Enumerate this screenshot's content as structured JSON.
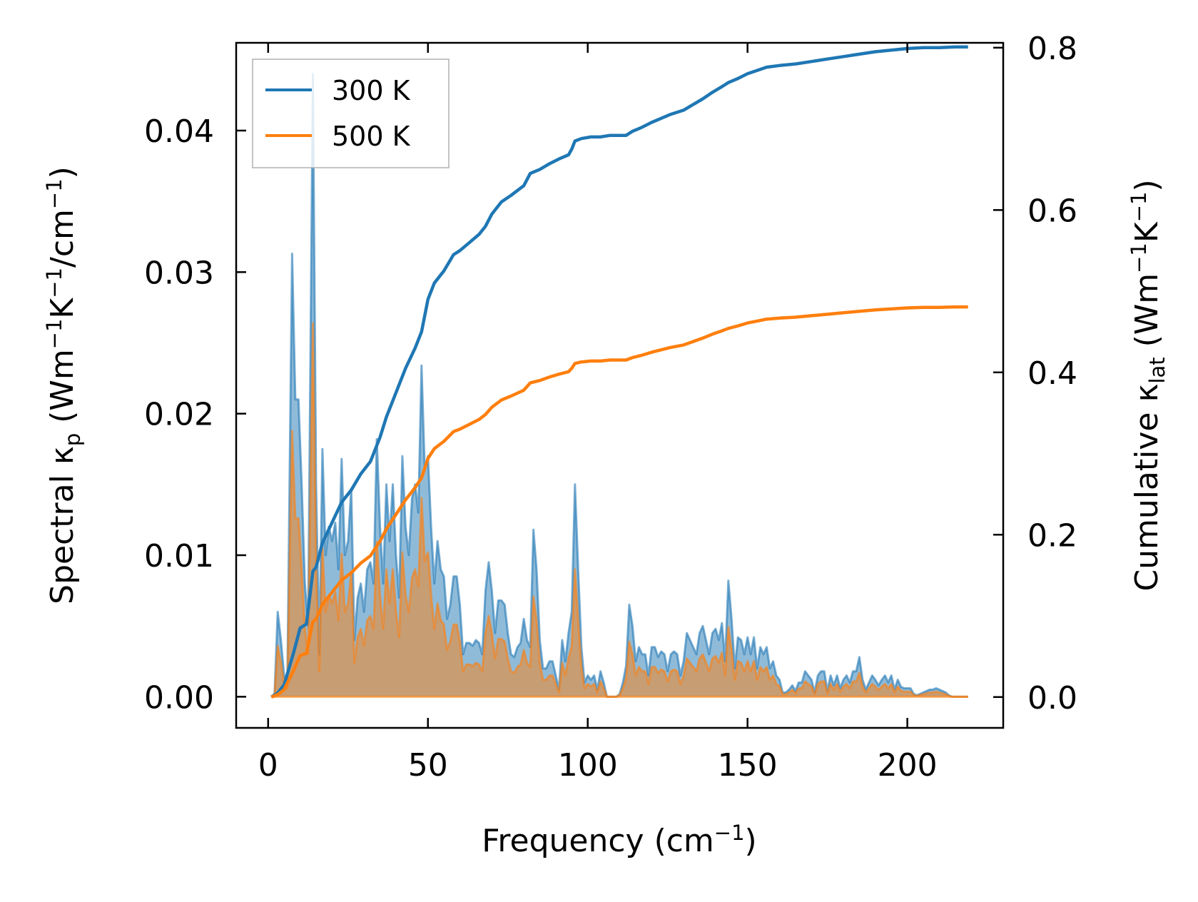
{
  "chart_data": {
    "type": "area+line",
    "xlabel": {
      "main": "Frequency (cm",
      "sup": "−1",
      "end": ")"
    },
    "ylabel_left": {
      "a": "Spectral κ",
      "sub": "p",
      "b": " (Wm",
      "sup1": "−1",
      "c": "K",
      "sup2": "−1",
      "d": "/cm",
      "sup3": "−1",
      "e": ")"
    },
    "ylabel_right": {
      "a": "Cumulative κ",
      "sub": "lat",
      "b": " (Wm",
      "sup1": "−1",
      "c": "K",
      "sup2": "−1",
      "d": ")"
    },
    "xlim": [
      -10,
      230
    ],
    "ylim_left": [
      -0.0022,
      0.0462
    ],
    "ylim_right": [
      -0.038,
      0.806
    ],
    "x_ticks": [
      {
        "value": 0,
        "label": "0"
      },
      {
        "value": 50,
        "label": "50"
      },
      {
        "value": 100,
        "label": "100"
      },
      {
        "value": 150,
        "label": "150"
      },
      {
        "value": 200,
        "label": "200"
      }
    ],
    "y_left_ticks": [
      {
        "value": 0.0,
        "label": "0.00"
      },
      {
        "value": 0.01,
        "label": "0.01"
      },
      {
        "value": 0.02,
        "label": "0.02"
      },
      {
        "value": 0.03,
        "label": "0.03"
      },
      {
        "value": 0.04,
        "label": "0.04"
      }
    ],
    "y_right_ticks": [
      {
        "value": 0.0,
        "label": "0.0"
      },
      {
        "value": 0.2,
        "label": "0.2"
      },
      {
        "value": 0.4,
        "label": "0.4"
      },
      {
        "value": 0.6,
        "label": "0.6"
      },
      {
        "value": 0.8,
        "label": "0.8"
      }
    ],
    "legend": {
      "placement": "top-left",
      "entries": [
        "300 K",
        "500 K"
      ]
    },
    "series": [
      {
        "name": "300 K",
        "color": "#1f77b4",
        "fill_color": "#1f77b4",
        "spectral": [
          [
            1,
            0.0
          ],
          [
            2,
            0.0002
          ],
          [
            3,
            0.006
          ],
          [
            4,
            0.004
          ],
          [
            5,
            0.0015
          ],
          [
            6,
            0.001
          ],
          [
            7.5,
            0.0313
          ],
          [
            8.5,
            0.021
          ],
          [
            9.5,
            0.021
          ],
          [
            10.5,
            0.015
          ],
          [
            11.5,
            0.008
          ],
          [
            12.5,
            0.005
          ],
          [
            14,
            0.044
          ],
          [
            15,
            0.015
          ],
          [
            16,
            0.003
          ],
          [
            17,
            0.0175
          ],
          [
            18,
            0.01
          ],
          [
            19,
            0.012
          ],
          [
            20,
            0.011
          ],
          [
            21,
            0.0123
          ],
          [
            22,
            0.009
          ],
          [
            23,
            0.0168
          ],
          [
            24,
            0.01
          ],
          [
            25,
            0.011
          ],
          [
            26,
            0.0147
          ],
          [
            27,
            0.004
          ],
          [
            28,
            0.007
          ],
          [
            29,
            0.008
          ],
          [
            30,
            0.006
          ],
          [
            31,
            0.009
          ],
          [
            32,
            0.0095
          ],
          [
            33,
            0.008
          ],
          [
            34,
            0.0182
          ],
          [
            35,
            0.012
          ],
          [
            36,
            0.008
          ],
          [
            37,
            0.015
          ],
          [
            38,
            0.011
          ],
          [
            39,
            0.015
          ],
          [
            40,
            0.01
          ],
          [
            41,
            0.007
          ],
          [
            42,
            0.017
          ],
          [
            43,
            0.012
          ],
          [
            44,
            0.01
          ],
          [
            45,
            0.014
          ],
          [
            46,
            0.015
          ],
          [
            47,
            0.013
          ],
          [
            48,
            0.0234
          ],
          [
            49,
            0.016
          ],
          [
            50,
            0.017
          ],
          [
            51,
            0.012
          ],
          [
            52,
            0.008
          ],
          [
            53,
            0.011
          ],
          [
            54,
            0.009
          ],
          [
            55,
            0.0085
          ],
          [
            56,
            0.0055
          ],
          [
            57,
            0.0065
          ],
          [
            58,
            0.0085
          ],
          [
            59,
            0.0085
          ],
          [
            60,
            0.0065
          ],
          [
            61,
            0.003
          ],
          [
            62,
            0.0038
          ],
          [
            63,
            0.0038
          ],
          [
            64,
            0.0036
          ],
          [
            65,
            0.004
          ],
          [
            66,
            0.0038
          ],
          [
            67,
            0.003
          ],
          [
            68,
            0.0075
          ],
          [
            69,
            0.0095
          ],
          [
            70,
            0.0075
          ],
          [
            71,
            0.0045
          ],
          [
            72,
            0.0068
          ],
          [
            73,
            0.0068
          ],
          [
            74,
            0.0065
          ],
          [
            75,
            0.0045
          ],
          [
            76,
            0.003
          ],
          [
            77,
            0.0028
          ],
          [
            78,
            0.0035
          ],
          [
            79,
            0.0038
          ],
          [
            80,
            0.0055
          ],
          [
            81,
            0.004
          ],
          [
            82,
            0.0035
          ],
          [
            83,
            0.0118
          ],
          [
            84,
            0.009
          ],
          [
            85,
            0.004
          ],
          [
            86,
            0.002
          ],
          [
            87,
            0.002
          ],
          [
            88,
            0.0025
          ],
          [
            89,
            0.0025
          ],
          [
            90,
            0.0015
          ],
          [
            91,
            0.0005
          ],
          [
            92,
            0.004
          ],
          [
            93,
            0.0025
          ],
          [
            94,
            0.0045
          ],
          [
            95,
            0.006
          ],
          [
            96,
            0.015
          ],
          [
            97,
            0.009
          ],
          [
            98,
            0.0035
          ],
          [
            99,
            0.001
          ],
          [
            100,
            0.0015
          ],
          [
            101,
            0.0012
          ],
          [
            102,
            0.0015
          ],
          [
            103,
            0.0005
          ],
          [
            104,
            0.0018
          ],
          [
            105,
            0.001
          ],
          [
            106,
            0.0
          ],
          [
            107,
            0.0
          ],
          [
            108,
            0.0
          ],
          [
            109,
            0.0
          ],
          [
            110,
            0.0002
          ],
          [
            111,
            0.001
          ],
          [
            112,
            0.0022
          ],
          [
            113,
            0.0065
          ],
          [
            114,
            0.005
          ],
          [
            115,
            0.0025
          ],
          [
            116,
            0.0035
          ],
          [
            117,
            0.003
          ],
          [
            118,
            0.003
          ],
          [
            119,
            0.0015
          ],
          [
            120,
            0.0035
          ],
          [
            121,
            0.0035
          ],
          [
            122,
            0.0028
          ],
          [
            123,
            0.0032
          ],
          [
            124,
            0.003
          ],
          [
            125,
            0.0018
          ],
          [
            126,
            0.003
          ],
          [
            127,
            0.0032
          ],
          [
            128,
            0.003
          ],
          [
            129,
            0.0015
          ],
          [
            130,
            0.0025
          ],
          [
            131,
            0.0045
          ],
          [
            132,
            0.004
          ],
          [
            133,
            0.0035
          ],
          [
            134,
            0.003
          ],
          [
            135,
            0.0045
          ],
          [
            136,
            0.005
          ],
          [
            137,
            0.004
          ],
          [
            138,
            0.003
          ],
          [
            139,
            0.0045
          ],
          [
            140,
            0.0048
          ],
          [
            141,
            0.004
          ],
          [
            142,
            0.0052
          ],
          [
            143,
            0.0025
          ],
          [
            144,
            0.0082
          ],
          [
            145,
            0.0055
          ],
          [
            146,
            0.002
          ],
          [
            147,
            0.0042
          ],
          [
            148,
            0.004
          ],
          [
            149,
            0.003
          ],
          [
            150,
            0.0042
          ],
          [
            151,
            0.003
          ],
          [
            152,
            0.0042
          ],
          [
            153,
            0.002
          ],
          [
            154,
            0.0035
          ],
          [
            155,
            0.003
          ],
          [
            156,
            0.0035
          ],
          [
            157,
            0.002
          ],
          [
            158,
            0.0025
          ],
          [
            159,
            0.0015
          ],
          [
            160,
            0.0012
          ],
          [
            161,
            0.0003
          ],
          [
            162,
            0.0003
          ],
          [
            163,
            0.0005
          ],
          [
            164,
            0.0008
          ],
          [
            165,
            0.0004
          ],
          [
            166,
            0.001
          ],
          [
            167,
            0.001
          ],
          [
            168,
            0.0018
          ],
          [
            169,
            0.0015
          ],
          [
            170,
            0.0012
          ],
          [
            171,
            0.0003
          ],
          [
            172,
            0.0015
          ],
          [
            173,
            0.0018
          ],
          [
            174,
            0.0018
          ],
          [
            175,
            0.0004
          ],
          [
            176,
            0.0015
          ],
          [
            177,
            0.0008
          ],
          [
            178,
            0.0015
          ],
          [
            179,
            0.0006
          ],
          [
            180,
            0.0012
          ],
          [
            181,
            0.0015
          ],
          [
            182,
            0.001
          ],
          [
            183,
            0.0018
          ],
          [
            184,
            0.0018
          ],
          [
            185,
            0.0028
          ],
          [
            186,
            0.0012
          ],
          [
            187,
            0.0005
          ],
          [
            188,
            0.001
          ],
          [
            189,
            0.0015
          ],
          [
            190,
            0.0012
          ],
          [
            191,
            0.0008
          ],
          [
            192,
            0.0012
          ],
          [
            193,
            0.0015
          ],
          [
            194,
            0.001
          ],
          [
            195,
            0.0015
          ],
          [
            196,
            0.0005
          ],
          [
            197,
            0.0012
          ],
          [
            198,
            0.0007
          ],
          [
            199,
            0.0006
          ],
          [
            200,
            0.0006
          ],
          [
            201,
            0.0006
          ],
          [
            202,
            0.0002
          ],
          [
            203,
            0.0001
          ],
          [
            204,
            0.0002
          ],
          [
            205,
            0.0003
          ],
          [
            206,
            0.0004
          ],
          [
            207,
            0.0005
          ],
          [
            208,
            0.0005
          ],
          [
            209,
            0.0006
          ],
          [
            210,
            0.0005
          ],
          [
            211,
            0.0004
          ],
          [
            212,
            0.0003
          ],
          [
            213,
            0.0001
          ],
          [
            214,
            0.0
          ],
          [
            216,
            0.0
          ],
          [
            218,
            0.0
          ],
          [
            219,
            0.0
          ]
        ],
        "cumulative": [
          [
            1,
            0.0
          ],
          [
            3,
            0.005
          ],
          [
            5,
            0.015
          ],
          [
            8,
            0.055
          ],
          [
            10,
            0.085
          ],
          [
            12,
            0.09
          ],
          [
            14,
            0.155
          ],
          [
            15,
            0.16
          ],
          [
            17,
            0.19
          ],
          [
            20,
            0.215
          ],
          [
            23,
            0.24
          ],
          [
            26,
            0.255
          ],
          [
            29,
            0.275
          ],
          [
            32,
            0.29
          ],
          [
            35,
            0.32
          ],
          [
            37,
            0.345
          ],
          [
            40,
            0.375
          ],
          [
            43,
            0.405
          ],
          [
            46,
            0.43
          ],
          [
            48,
            0.45
          ],
          [
            50,
            0.49
          ],
          [
            52,
            0.51
          ],
          [
            55,
            0.525
          ],
          [
            58,
            0.545
          ],
          [
            60,
            0.55
          ],
          [
            63,
            0.56
          ],
          [
            66,
            0.57
          ],
          [
            68,
            0.58
          ],
          [
            70,
            0.595
          ],
          [
            73,
            0.61
          ],
          [
            76,
            0.618
          ],
          [
            80,
            0.63
          ],
          [
            82,
            0.645
          ],
          [
            85,
            0.65
          ],
          [
            88,
            0.657
          ],
          [
            91,
            0.663
          ],
          [
            94,
            0.668
          ],
          [
            95,
            0.675
          ],
          [
            96,
            0.685
          ],
          [
            98,
            0.688
          ],
          [
            101,
            0.69
          ],
          [
            104,
            0.69
          ],
          [
            107,
            0.692
          ],
          [
            110,
            0.692
          ],
          [
            112,
            0.692
          ],
          [
            114,
            0.697
          ],
          [
            117,
            0.702
          ],
          [
            120,
            0.708
          ],
          [
            123,
            0.713
          ],
          [
            126,
            0.718
          ],
          [
            130,
            0.723
          ],
          [
            133,
            0.73
          ],
          [
            136,
            0.737
          ],
          [
            139,
            0.745
          ],
          [
            142,
            0.752
          ],
          [
            144,
            0.757
          ],
          [
            147,
            0.762
          ],
          [
            150,
            0.768
          ],
          [
            153,
            0.772
          ],
          [
            156,
            0.776
          ],
          [
            160,
            0.778
          ],
          [
            165,
            0.78
          ],
          [
            170,
            0.783
          ],
          [
            175,
            0.786
          ],
          [
            180,
            0.789
          ],
          [
            185,
            0.792
          ],
          [
            190,
            0.795
          ],
          [
            195,
            0.797
          ],
          [
            200,
            0.799
          ],
          [
            205,
            0.8
          ],
          [
            210,
            0.8
          ],
          [
            215,
            0.801
          ],
          [
            219,
            0.801
          ]
        ]
      },
      {
        "name": "500 K",
        "color": "#ff7f0e",
        "fill_color": "#ff7f0e",
        "spectral_scale_of_300K": 0.6,
        "cumulative_scale_of_300K": 0.6
      }
    ]
  }
}
